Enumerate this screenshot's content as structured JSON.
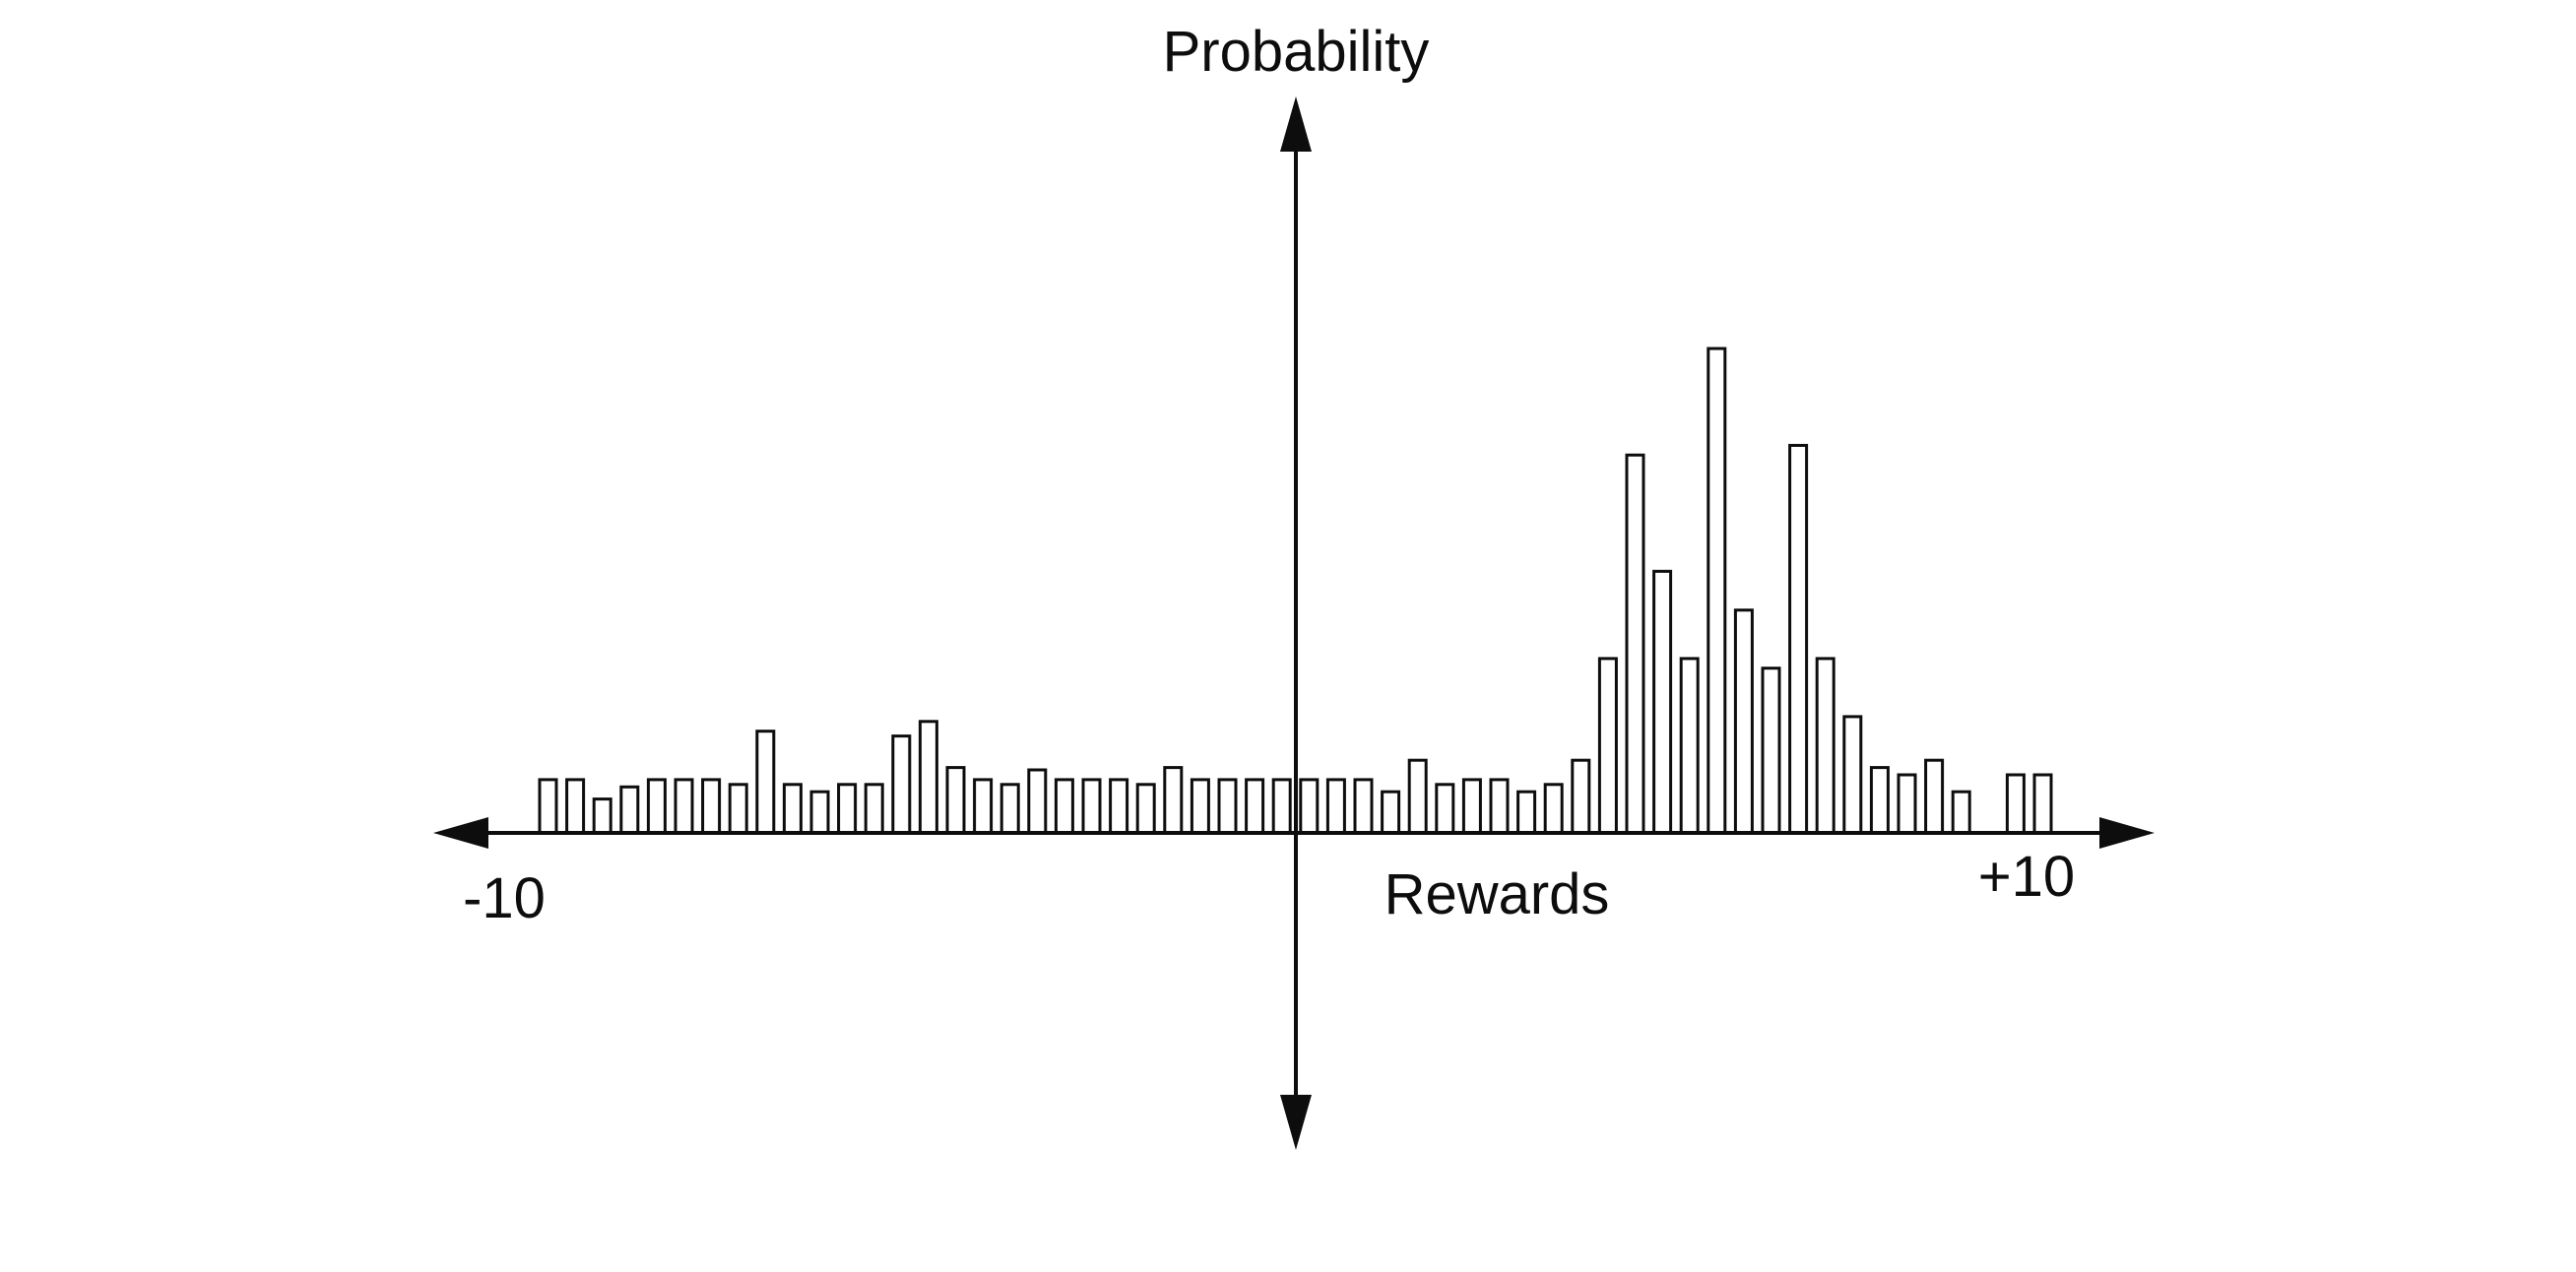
{
  "labels": {
    "y_axis": "Probability",
    "x_axis": "Rewards",
    "x_min": "-10",
    "x_max": "+10"
  },
  "colors": {
    "background": "#ffffff",
    "bar_fill": "#ffffff",
    "bar_stroke": "#0d0d0d",
    "axis": "#0d0d0d"
  },
  "chart_data": {
    "type": "bar",
    "title": "",
    "xlabel": "Rewards",
    "ylabel": "Probability",
    "x_range": [
      -10,
      10
    ],
    "x_tick_labels": [
      "-10",
      "+10"
    ],
    "legend": "none",
    "grid": false,
    "bar_style": "outlined white bars on horizontal axis, two-headed arrow axes",
    "note": "bar heights estimated as fraction of tallest bar (tallest = 1.0); a 0 entry is a gap near x=+8.6",
    "values": [
      0.11,
      0.11,
      0.07,
      0.095,
      0.11,
      0.11,
      0.11,
      0.1,
      0.21,
      0.1,
      0.085,
      0.1,
      0.1,
      0.2,
      0.23,
      0.135,
      0.11,
      0.1,
      0.13,
      0.11,
      0.11,
      0.11,
      0.1,
      0.135,
      0.11,
      0.11,
      0.11,
      0.11,
      0.11,
      0.11,
      0.11,
      0.085,
      0.15,
      0.1,
      0.11,
      0.11,
      0.085,
      0.1,
      0.15,
      0.36,
      0.78,
      0.54,
      0.36,
      1.0,
      0.46,
      0.34,
      0.8,
      0.36,
      0.24,
      0.135,
      0.12,
      0.15,
      0.085,
      0,
      0.12,
      0.12
    ]
  }
}
